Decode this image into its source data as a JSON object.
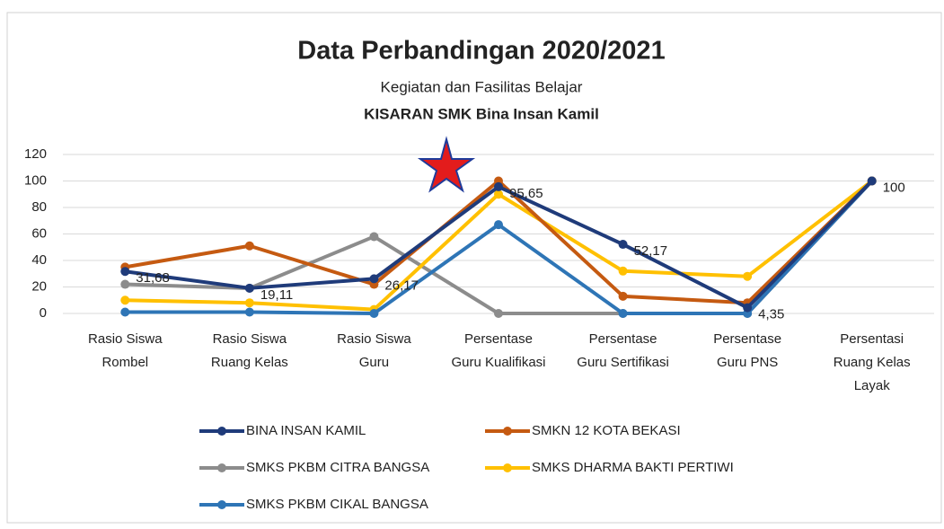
{
  "chart_data": {
    "type": "line",
    "title": "Data Perbandingan  2020/2021",
    "subtitle": "Kegiatan dan Fasilitas  Belajar",
    "subtitle2": "KISARAN SMK Bina Insan Kamil",
    "categories": [
      [
        "Rasio Siswa",
        "Rombel"
      ],
      [
        "Rasio Siswa",
        "Ruang Kelas"
      ],
      [
        "Rasio Siswa",
        "Guru"
      ],
      [
        "Persentase",
        "Guru Kualifikasi"
      ],
      [
        "Persentase",
        "Guru Sertifikasi"
      ],
      [
        "Persentase",
        "Guru PNS"
      ],
      [
        "Persentasi",
        "Ruang Kelas",
        "Layak"
      ]
    ],
    "series": [
      {
        "name": "SMKS PKBM CITRA BANGSA",
        "color": "#8c8c8c",
        "values": [
          22,
          19,
          58,
          0,
          0,
          0,
          100
        ]
      },
      {
        "name": "SMKS DHARMA BAKTI PERTIWI",
        "color": "#ffc000",
        "values": [
          10,
          8,
          3,
          90,
          32,
          28,
          100
        ]
      },
      {
        "name": "SMKS PKBM CIKAL BANGSA",
        "color": "#2e75b6",
        "values": [
          1,
          1,
          0,
          67,
          0,
          0,
          100
        ]
      },
      {
        "name": "SMKN 12 KOTA BEKASI",
        "color": "#c55a11",
        "values": [
          35,
          51,
          22,
          100,
          13,
          8,
          100
        ]
      },
      {
        "name": "BINA INSAN KAMIL",
        "color": "#1f3b7a",
        "values": [
          31.68,
          19.11,
          26.17,
          95.65,
          52.17,
          4.35,
          100
        ],
        "value_labels": [
          "31,68",
          "19,11",
          "26,17",
          "95,65",
          "52,17",
          "4,35",
          "100"
        ]
      }
    ],
    "ylim": [
      0,
      120
    ],
    "yticks": [
      0,
      20,
      40,
      60,
      80,
      100,
      120
    ],
    "grid": true
  }
}
